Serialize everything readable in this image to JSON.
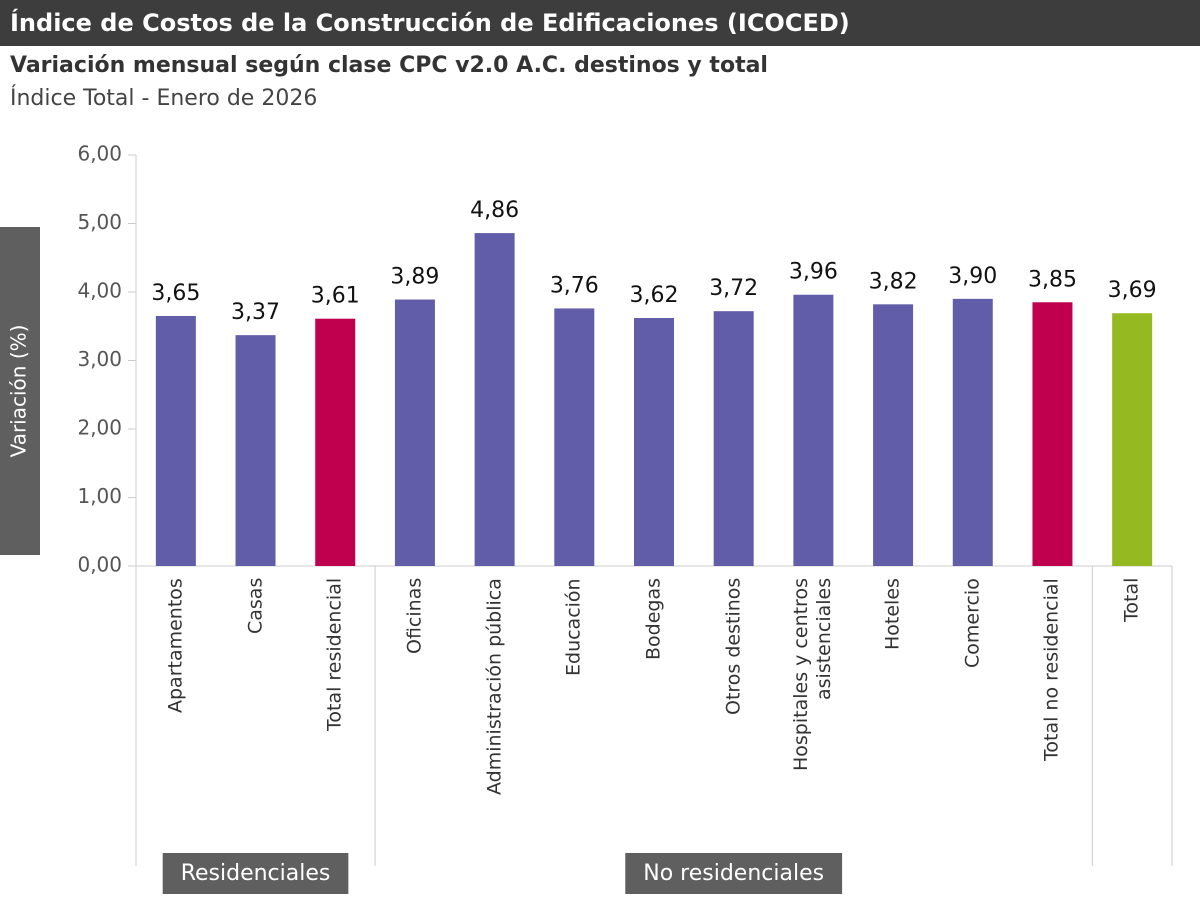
{
  "chart_data": {
    "type": "bar",
    "title": "Índice de Costos de la Construcción de Edificaciones (ICOCED)",
    "subtitle": "Variación mensual según clase CPC v2.0 A.C. destinos y total",
    "caption": "Índice Total - Enero de 2026",
    "y_label": "Variación (%)",
    "categories": [
      "Apartamentos",
      "Casas",
      "Total residencial",
      "Oficinas",
      "Administración pública",
      "Educación",
      "Bodegas",
      "Otros destinos",
      "Hospitales y centros asistenciales",
      "Hoteles",
      "Comercio",
      "Total no residencial",
      "Total"
    ],
    "category_groups": [
      "Residenciales",
      "Residenciales",
      "Residenciales",
      "No residenciales",
      "No residenciales",
      "No residenciales",
      "No residenciales",
      "No residenciales",
      "No residenciales",
      "No residenciales",
      "No residenciales",
      "No residenciales",
      null
    ],
    "values": [
      3.65,
      3.37,
      3.61,
      3.89,
      4.86,
      3.76,
      3.62,
      3.72,
      3.96,
      3.82,
      3.9,
      3.85,
      3.69
    ],
    "value_labels": [
      "3,65",
      "3,37",
      "3,61",
      "3,89",
      "4,86",
      "3,76",
      "3,62",
      "3,72",
      "3,96",
      "3,82",
      "3,90",
      "3,85",
      "3,69"
    ],
    "colors": [
      "#625da8",
      "#625da8",
      "#c0004f",
      "#625da8",
      "#625da8",
      "#625da8",
      "#625da8",
      "#625da8",
      "#625da8",
      "#625da8",
      "#625da8",
      "#c0004f",
      "#95b920"
    ],
    "ylim": [
      0,
      6
    ],
    "yticks": [
      {
        "value": 0,
        "label": "0,00"
      },
      {
        "value": 1,
        "label": "1,00"
      },
      {
        "value": 2,
        "label": "2,00"
      },
      {
        "value": 3,
        "label": "3,00"
      },
      {
        "value": 4,
        "label": "4,00"
      },
      {
        "value": 5,
        "label": "5,00"
      },
      {
        "value": 6,
        "label": "6,00"
      }
    ],
    "grid": false
  }
}
